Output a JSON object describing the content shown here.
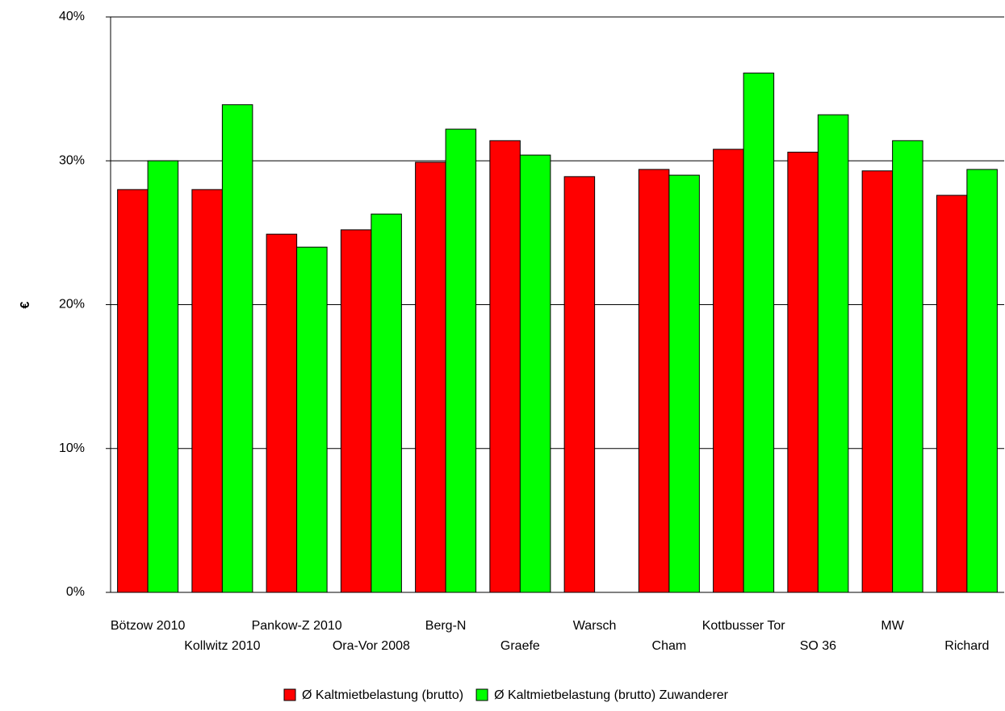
{
  "chart_data": {
    "type": "bar",
    "y_label": "€",
    "categories": [
      "Bötzow 2010",
      "Kollwitz 2010",
      "Pankow-Z 2010",
      "Ora-Vor 2008",
      "Berg-N",
      "Graefe",
      "Warsch",
      "Cham",
      "Kottbusser Tor",
      "SO 36",
      "MW",
      "Richard"
    ],
    "series": [
      {
        "name": "Ø Kaltmietbelastung (brutto)",
        "color": "#ff0000",
        "values": [
          28,
          28,
          24.9,
          25.2,
          29.9,
          31.4,
          28.9,
          29.4,
          30.8,
          30.6,
          29.3,
          27.6
        ]
      },
      {
        "name": "Ø Kaltmietbelastung (brutto) Zuwanderer",
        "color": "#00ff00",
        "values": [
          30,
          33.9,
          24,
          26.3,
          32.2,
          30.4,
          null,
          29,
          36.1,
          33.2,
          31.4,
          29.4
        ]
      }
    ],
    "ylim": [
      0,
      40
    ],
    "yticks": [
      {
        "value": 0,
        "label": "0%"
      },
      {
        "value": 10,
        "label": "10%"
      },
      {
        "value": 20,
        "label": "20%"
      },
      {
        "value": 30,
        "label": "30%"
      },
      {
        "value": 40,
        "label": "40%"
      }
    ],
    "grid": true,
    "legend": "bottom"
  }
}
